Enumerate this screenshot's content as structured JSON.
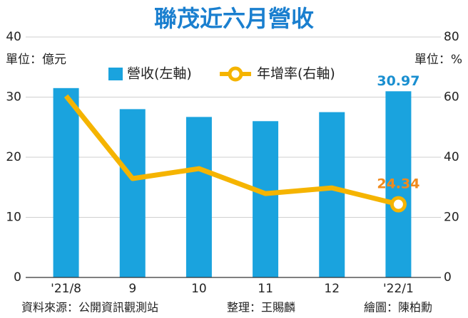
{
  "chart_data": {
    "type": "bar_line",
    "title": "聯茂近六月營收",
    "y_label": "單位：億元",
    "y2_label": "單位：%",
    "categories": [
      "'21/8",
      "9",
      "10",
      "11",
      "12",
      "'22/1"
    ],
    "series": [
      {
        "name": "營收(左軸)",
        "type": "bar",
        "color": "#1aa3de",
        "label_color": "#1a8fd0",
        "values": [
          31.5,
          28.0,
          26.7,
          26.0,
          27.5,
          30.97
        ],
        "value_labels": [
          null,
          null,
          null,
          null,
          null,
          "30.97"
        ]
      },
      {
        "name": "年增率(右軸)",
        "type": "line",
        "axis": "y2",
        "color": "#f5b400",
        "label_color": "#f08a1c",
        "values": [
          60.4,
          32.9,
          36.2,
          27.9,
          29.8,
          24.34
        ],
        "value_labels": [
          null,
          null,
          null,
          null,
          null,
          "24.34"
        ]
      }
    ],
    "ylim": [
      0,
      40
    ],
    "yticks": [
      0,
      10,
      20,
      30,
      40
    ],
    "y2lim": [
      0,
      80
    ],
    "y2ticks": [
      0,
      20,
      40,
      60,
      80
    ],
    "grid": true,
    "notes": [
      "資料來源：公開資訊觀測站",
      "整理：王賜麟",
      "繪圖：陳柏勳"
    ]
  }
}
